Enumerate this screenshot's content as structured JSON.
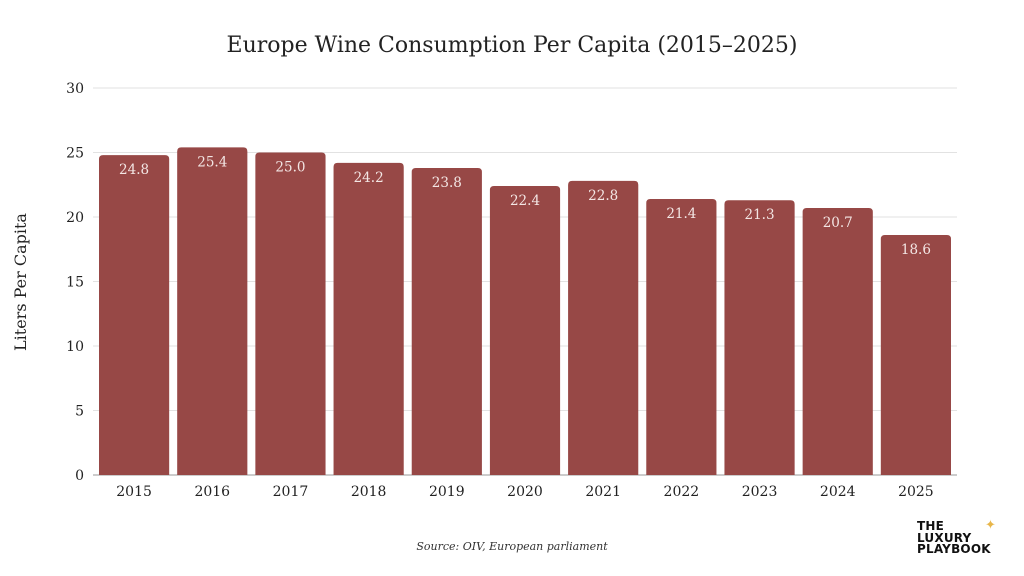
{
  "chart_data": {
    "type": "bar",
    "title": "Europe Wine Consumption Per Capita (2015–2025)",
    "xlabel": "",
    "ylabel": "Liters Per Capita",
    "ylim": [
      0,
      30
    ],
    "yticks": [
      0,
      5,
      10,
      15,
      20,
      25,
      30
    ],
    "grid": true,
    "categories": [
      "2015",
      "2016",
      "2017",
      "2018",
      "2019",
      "2020",
      "2021",
      "2022",
      "2023",
      "2024",
      "2025"
    ],
    "values": [
      24.8,
      25.4,
      25.0,
      24.2,
      23.8,
      22.4,
      22.8,
      21.4,
      21.3,
      20.7,
      18.6
    ],
    "data_labels": [
      "24.8",
      "25.4",
      "25.0",
      "24.2",
      "23.8",
      "22.4",
      "22.8",
      "21.4",
      "21.3",
      "20.7",
      "18.6"
    ],
    "bar_color": "#974846",
    "source": "Source: OIV, European parliament"
  },
  "logo": {
    "lines": [
      "THE",
      "LUXURY",
      "PLAYBOOK"
    ],
    "star_color": "#e8b64a"
  }
}
